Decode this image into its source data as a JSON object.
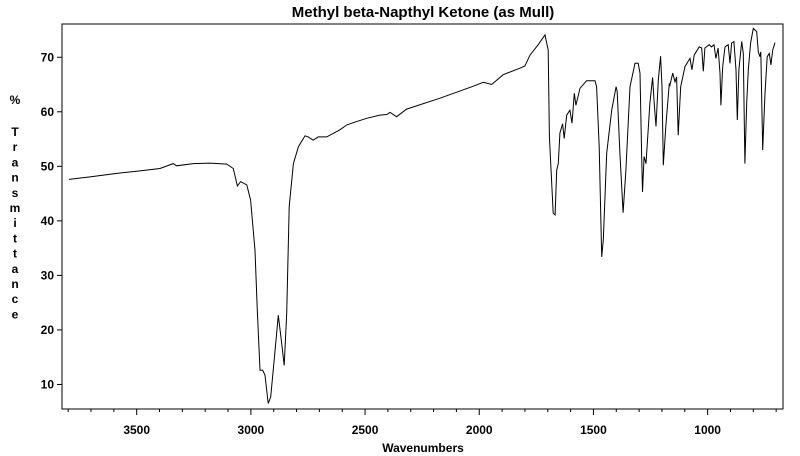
{
  "chart_data": {
    "type": "line",
    "title": "Methyl beta-Napthyl Ketone (as Mull)",
    "xlabel": "Wavenumbers",
    "ylabel": "% Transmittance",
    "ylabel_lines": [
      "%",
      "T",
      "r",
      "a",
      "n",
      "s",
      "m",
      "i",
      "t",
      "t",
      "a",
      "n",
      "c",
      "e"
    ],
    "xlim": [
      3827,
      670
    ],
    "ylim": [
      5.5,
      76.1
    ],
    "xticks": [
      3500,
      3000,
      2500,
      2000,
      1500,
      1000
    ],
    "xtick_labels": [
      "3500",
      "3000",
      "2500",
      "2000",
      "1500",
      "1000"
    ],
    "yticks": [
      10,
      20,
      30,
      40,
      50,
      60,
      70
    ],
    "ytick_labels": [
      "10",
      "20",
      "30",
      "40",
      "50",
      "60",
      "70"
    ],
    "grid": false,
    "series": [
      {
        "name": "Methyl beta-Napthyl Ketone",
        "color": "#000000",
        "x": [
          3796,
          3700,
          3587,
          3500,
          3398,
          3340,
          3325,
          3252,
          3180,
          3106,
          3077,
          3059,
          3045,
          3018,
          3001,
          2982,
          2972,
          2960,
          2948,
          2938,
          2924,
          2913,
          2894,
          2880,
          2865,
          2854,
          2843,
          2832,
          2814,
          2792,
          2763,
          2749,
          2727,
          2705,
          2668,
          2610,
          2580,
          2552,
          2493,
          2435,
          2405,
          2391,
          2362,
          2318,
          2172,
          2026,
          1982,
          1946,
          1895,
          1822,
          1800,
          1778,
          1742,
          1712,
          1698,
          1693,
          1676,
          1668,
          1661,
          1654,
          1647,
          1635,
          1628,
          1617,
          1603,
          1594,
          1584,
          1577,
          1559,
          1530,
          1493,
          1486,
          1475,
          1464,
          1457,
          1442,
          1420,
          1401,
          1396,
          1384,
          1370,
          1358,
          1340,
          1318,
          1304,
          1296,
          1289,
          1285,
          1278,
          1270,
          1253,
          1241,
          1234,
          1226,
          1216,
          1206,
          1200,
          1194,
          1183,
          1168,
          1165,
          1153,
          1143,
          1136,
          1129,
          1118,
          1099,
          1077,
          1069,
          1059,
          1037,
          1026,
          1019,
          1012,
          993,
          983,
          972,
          964,
          954,
          946,
          942,
          934,
          924,
          910,
          902,
          895,
          885,
          876,
          870,
          863,
          851,
          844,
          837,
          829,
          822,
          812,
          800,
          785,
          778,
          771,
          767,
          759,
          749,
          739,
          730,
          723,
          715,
          705
        ],
        "y": [
          47.6,
          48.1,
          48.7,
          49.1,
          49.6,
          50.5,
          50.1,
          50.5,
          50.6,
          50.4,
          49.6,
          46.4,
          47.2,
          46.6,
          43.8,
          34.6,
          23.6,
          12.6,
          12.6,
          11.7,
          6.5,
          7.7,
          16.3,
          22.7,
          17.5,
          13.5,
          23.0,
          42.6,
          50.5,
          53.6,
          55.6,
          55.4,
          54.8,
          55.4,
          55.4,
          56.7,
          57.6,
          58.0,
          58.8,
          59.4,
          59.5,
          59.9,
          59.1,
          60.5,
          62.5,
          64.7,
          65.4,
          65.0,
          66.8,
          68.0,
          68.4,
          70.4,
          72.3,
          74.1,
          71.3,
          55.4,
          41.4,
          41.1,
          49.3,
          50.5,
          56.1,
          57.8,
          55.1,
          59.4,
          60.3,
          57.9,
          63.4,
          61.2,
          64.3,
          65.7,
          65.7,
          64.6,
          53.6,
          33.4,
          36.5,
          52.4,
          60.3,
          64.6,
          63.7,
          52.4,
          41.5,
          49.3,
          64.6,
          68.9,
          68.9,
          67.1,
          52.4,
          45.3,
          51.8,
          50.5,
          61.6,
          66.3,
          61.6,
          57.3,
          65.8,
          70.2,
          64.6,
          50.2,
          57.3,
          65.2,
          64.9,
          67.1,
          65.5,
          66.4,
          55.7,
          64.6,
          68.3,
          69.8,
          67.7,
          70.4,
          71.9,
          71.7,
          67.4,
          71.7,
          72.3,
          71.9,
          72.3,
          69.8,
          71.7,
          67.1,
          61.2,
          68.3,
          71.9,
          72.3,
          68.9,
          72.6,
          72.9,
          67.7,
          58.5,
          67.7,
          72.9,
          70.7,
          50.5,
          61.6,
          67.7,
          72.6,
          75.3,
          74.7,
          71.0,
          70.1,
          71.0,
          53.0,
          63.4,
          70.1,
          70.7,
          68.6,
          71.3,
          72.7
        ]
      }
    ]
  }
}
